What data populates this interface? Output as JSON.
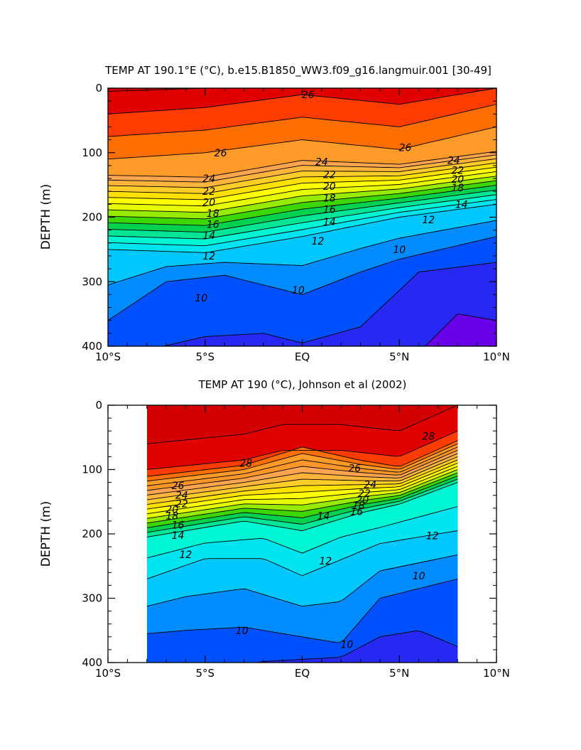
{
  "chart_data": [
    {
      "type": "heatmap",
      "subtype": "filled-contour",
      "title": "TEMP AT 190.1°E (°C), b.e15.B1850_WW3.f09_g16.langmuir.001 [30-49]",
      "xlabel": "",
      "ylabel": "DEPTH (m)",
      "xlim": [
        -10,
        10
      ],
      "ylim": [
        400,
        0
      ],
      "y_inverted": true,
      "x_ticks": [
        -10,
        -5,
        0,
        5,
        10
      ],
      "x_tick_labels": [
        "10°S",
        "5°S",
        "EQ",
        "5°N",
        "10°N"
      ],
      "y_ticks": [
        0,
        100,
        200,
        300,
        400
      ],
      "y_tick_labels": [
        "0",
        "100",
        "200",
        "300",
        "400"
      ],
      "data_xrange": [
        -10,
        10
      ],
      "contour_interval": 1,
      "levels": [
        8,
        9,
        10,
        11,
        12,
        13,
        14,
        15,
        16,
        17,
        18,
        19,
        20,
        21,
        22,
        23,
        24,
        25,
        26,
        27,
        28,
        29
      ],
      "contour_labels": [
        {
          "text": "26",
          "x": 0.3,
          "y": 10
        },
        {
          "text": "26",
          "x": -4.2,
          "y": 100
        },
        {
          "text": "26",
          "x": 5.3,
          "y": 92
        },
        {
          "text": "24",
          "x": -4.8,
          "y": 140
        },
        {
          "text": "24",
          "x": 1.0,
          "y": 114
        },
        {
          "text": "24",
          "x": 7.8,
          "y": 112
        },
        {
          "text": "22",
          "x": -4.8,
          "y": 160
        },
        {
          "text": "22",
          "x": 1.4,
          "y": 134
        },
        {
          "text": "22",
          "x": 8.0,
          "y": 127
        },
        {
          "text": "20",
          "x": -4.8,
          "y": 177
        },
        {
          "text": "20",
          "x": 1.4,
          "y": 152
        },
        {
          "text": "20",
          "x": 8.0,
          "y": 141
        },
        {
          "text": "18",
          "x": -4.6,
          "y": 194
        },
        {
          "text": "18",
          "x": 1.4,
          "y": 170
        },
        {
          "text": "18",
          "x": 8.0,
          "y": 154
        },
        {
          "text": "16",
          "x": -4.6,
          "y": 211
        },
        {
          "text": "16",
          "x": 1.4,
          "y": 188
        },
        {
          "text": "14",
          "x": -4.8,
          "y": 228
        },
        {
          "text": "14",
          "x": 1.4,
          "y": 207
        },
        {
          "text": "14",
          "x": 8.2,
          "y": 180
        },
        {
          "text": "12",
          "x": -4.8,
          "y": 260
        },
        {
          "text": "12",
          "x": 0.8,
          "y": 237
        },
        {
          "text": "12",
          "x": 6.5,
          "y": 204
        },
        {
          "text": "10",
          "x": -5.2,
          "y": 325
        },
        {
          "text": "10",
          "x": -0.2,
          "y": 313
        },
        {
          "text": "10",
          "x": 5.0,
          "y": 250
        }
      ]
    },
    {
      "type": "heatmap",
      "subtype": "filled-contour",
      "title": "TEMP AT 190 (°C), Johnson et al (2002)",
      "xlabel": "",
      "ylabel": "DEPTH (m)",
      "xlim": [
        -10,
        10
      ],
      "ylim": [
        400,
        0
      ],
      "y_inverted": true,
      "x_ticks": [
        -10,
        -5,
        0,
        5,
        10
      ],
      "x_tick_labels": [
        "10°S",
        "5°S",
        "EQ",
        "5°N",
        "10°N"
      ],
      "y_ticks": [
        0,
        100,
        200,
        300,
        400
      ],
      "y_tick_labels": [
        "0",
        "100",
        "200",
        "300",
        "400"
      ],
      "data_xrange": [
        -8,
        8
      ],
      "contour_interval": 1,
      "levels": [
        8,
        9,
        10,
        11,
        12,
        13,
        14,
        15,
        16,
        17,
        18,
        19,
        20,
        21,
        22,
        23,
        24,
        25,
        26,
        27,
        28,
        29
      ],
      "contour_labels": [
        {
          "text": "28",
          "x": 6.5,
          "y": 48
        },
        {
          "text": "28",
          "x": -2.9,
          "y": 90
        },
        {
          "text": "26",
          "x": 2.7,
          "y": 98
        },
        {
          "text": "26",
          "x": -6.4,
          "y": 125
        },
        {
          "text": "24",
          "x": 3.5,
          "y": 123
        },
        {
          "text": "24",
          "x": -6.2,
          "y": 140
        },
        {
          "text": "22",
          "x": 3.2,
          "y": 137
        },
        {
          "text": "22",
          "x": -6.2,
          "y": 153
        },
        {
          "text": "20",
          "x": 3.1,
          "y": 147
        },
        {
          "text": "20",
          "x": -6.7,
          "y": 162
        },
        {
          "text": "18",
          "x": 2.9,
          "y": 156
        },
        {
          "text": "18",
          "x": -6.7,
          "y": 172
        },
        {
          "text": "16",
          "x": 2.8,
          "y": 165
        },
        {
          "text": "16",
          "x": -6.4,
          "y": 186
        },
        {
          "text": "14",
          "x": 1.1,
          "y": 172
        },
        {
          "text": "14",
          "x": -6.4,
          "y": 202
        },
        {
          "text": "12",
          "x": 6.7,
          "y": 203
        },
        {
          "text": "12",
          "x": 1.2,
          "y": 242
        },
        {
          "text": "12",
          "x": -6.0,
          "y": 232
        },
        {
          "text": "10",
          "x": 6.0,
          "y": 265
        },
        {
          "text": "10",
          "x": -3.1,
          "y": 350
        },
        {
          "text": "10",
          "x": 2.3,
          "y": 372
        }
      ]
    }
  ]
}
